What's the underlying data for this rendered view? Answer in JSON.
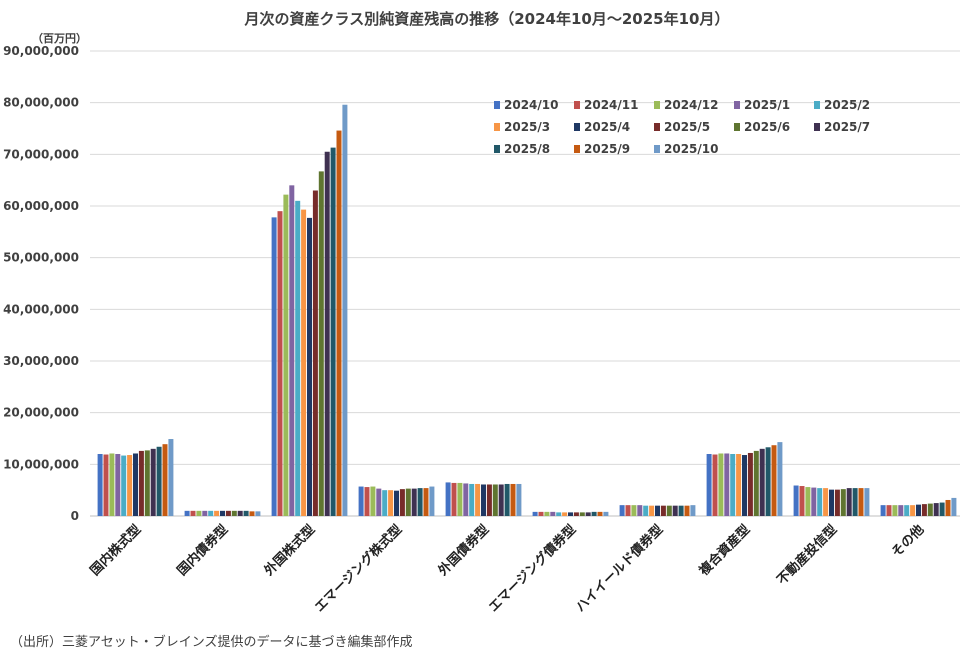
{
  "chart_data": {
    "type": "bar",
    "title": "月次の資産クラス別純資産残高の推移（2024年10月～2025年10月）",
    "unit_label": "（百万円）",
    "source_note": "（出所）三菱アセット・ブレインズ提供のデータに基づき編集部作成",
    "ylim": [
      0,
      90000000
    ],
    "y_ticks": [
      "0",
      "10,000,000",
      "20,000,000",
      "30,000,000",
      "40,000,000",
      "50,000,000",
      "60,000,000",
      "70,000,000",
      "80,000,000",
      "90,000,000"
    ],
    "grid": true,
    "legend_position": "top-right",
    "categories": [
      "国内株式型",
      "国内債券型",
      "外国株式型",
      "エマージング株式型",
      "外国債券型",
      "エマージング債券型",
      "ハイイールド債券型",
      "複合資産型",
      "不動産投信型",
      "その他"
    ],
    "series": [
      {
        "name": "2024/10",
        "color": "#4472C4",
        "values": [
          12000000,
          1000000,
          57800000,
          5700000,
          6500000,
          800000,
          2100000,
          12000000,
          5900000,
          2100000
        ]
      },
      {
        "name": "2024/11",
        "color": "#C0504D",
        "values": [
          11900000,
          1000000,
          59000000,
          5600000,
          6400000,
          800000,
          2100000,
          11900000,
          5800000,
          2100000
        ]
      },
      {
        "name": "2024/12",
        "color": "#9BBB59",
        "values": [
          12100000,
          1000000,
          62200000,
          5700000,
          6400000,
          800000,
          2100000,
          12100000,
          5600000,
          2100000
        ]
      },
      {
        "name": "2025/1",
        "color": "#8064A2",
        "values": [
          12000000,
          1000000,
          64000000,
          5300000,
          6300000,
          800000,
          2100000,
          12100000,
          5500000,
          2100000
        ]
      },
      {
        "name": "2025/2",
        "color": "#4BACC6",
        "values": [
          11700000,
          1000000,
          61000000,
          5000000,
          6200000,
          700000,
          2000000,
          12000000,
          5400000,
          2100000
        ]
      },
      {
        "name": "2025/3",
        "color": "#F79646",
        "values": [
          11800000,
          1000000,
          59300000,
          5000000,
          6200000,
          700000,
          2000000,
          12000000,
          5400000,
          2100000
        ]
      },
      {
        "name": "2025/4",
        "color": "#1F3864",
        "values": [
          12100000,
          1000000,
          57700000,
          4900000,
          6100000,
          700000,
          2000000,
          11800000,
          5100000,
          2200000
        ]
      },
      {
        "name": "2025/5",
        "color": "#772C2A",
        "values": [
          12600000,
          1000000,
          63000000,
          5200000,
          6100000,
          700000,
          2000000,
          12200000,
          5100000,
          2300000
        ]
      },
      {
        "name": "2025/6",
        "color": "#5F7530",
        "values": [
          12700000,
          1000000,
          66700000,
          5300000,
          6100000,
          700000,
          2000000,
          12600000,
          5200000,
          2400000
        ]
      },
      {
        "name": "2025/7",
        "color": "#3F3151",
        "values": [
          13000000,
          1000000,
          70500000,
          5300000,
          6100000,
          700000,
          2000000,
          13000000,
          5400000,
          2500000
        ]
      },
      {
        "name": "2025/8",
        "color": "#215868",
        "values": [
          13400000,
          1000000,
          71300000,
          5400000,
          6200000,
          800000,
          2000000,
          13300000,
          5400000,
          2600000
        ]
      },
      {
        "name": "2025/9",
        "color": "#C55A11",
        "values": [
          13900000,
          900000,
          74600000,
          5400000,
          6200000,
          800000,
          2000000,
          13700000,
          5400000,
          3100000
        ]
      },
      {
        "name": "2025/10",
        "color": "#6F9AC8",
        "values": [
          14900000,
          900000,
          79600000,
          5700000,
          6200000,
          800000,
          2100000,
          14300000,
          5400000,
          3500000
        ]
      }
    ]
  }
}
